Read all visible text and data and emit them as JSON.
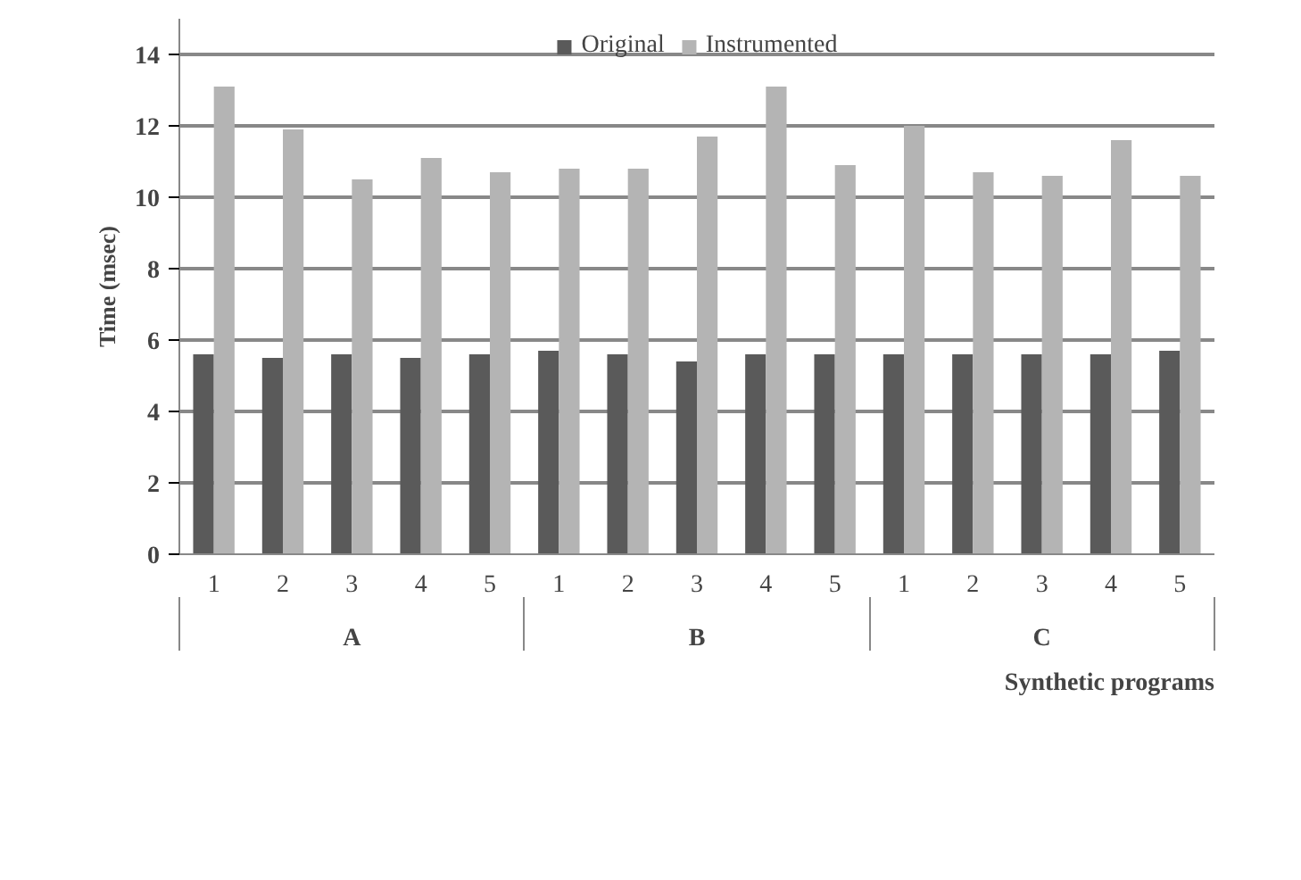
{
  "chart_data": {
    "type": "bar",
    "xlabel": "Synthetic programs",
    "ylabel": "Time (msec)",
    "categories": [
      "1",
      "2",
      "3",
      "4",
      "5",
      "1",
      "2",
      "3",
      "4",
      "5",
      "1",
      "2",
      "3",
      "4",
      "5"
    ],
    "series": [
      {
        "name": "Original",
        "color": "#5a5a5a",
        "values": [
          5.6,
          5.5,
          5.6,
          5.5,
          5.6,
          5.7,
          5.6,
          5.4,
          5.6,
          5.6,
          5.6,
          5.6,
          5.6,
          5.6,
          5.7
        ]
      },
      {
        "name": "Instrumented",
        "color": "#b4b4b4",
        "values": [
          13.1,
          11.9,
          10.5,
          11.1,
          10.7,
          10.8,
          10.8,
          11.7,
          13.1,
          10.9,
          12.0,
          10.7,
          10.6,
          11.6,
          10.6
        ]
      }
    ],
    "annotations": [
      "A",
      "B",
      "C"
    ],
    "ylim": [
      0,
      15
    ],
    "yticks": [
      0,
      2,
      4,
      6,
      8,
      10,
      12,
      14
    ],
    "grid": "y",
    "legend": "top"
  }
}
